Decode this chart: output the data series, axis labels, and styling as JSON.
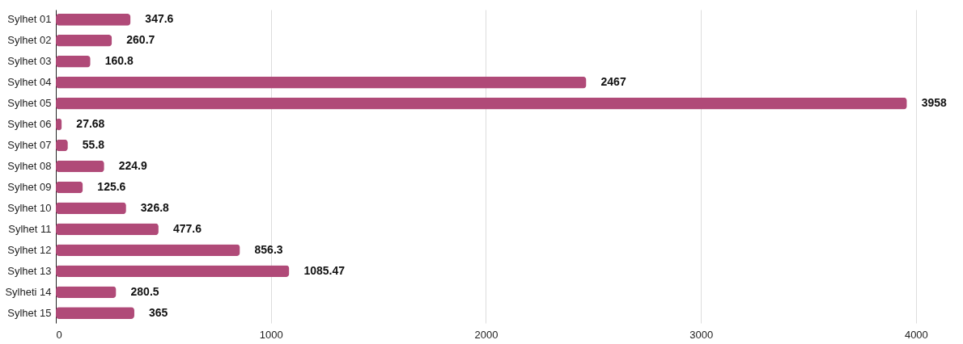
{
  "chart_data": {
    "type": "bar",
    "orientation": "horizontal",
    "categories": [
      "Sylhet 01",
      "Sylhet 02",
      "Sylhet 03",
      "Sylhet 04",
      "Sylhet 05",
      "Sylhet 06",
      "Sylhet 07",
      "Sylhet 08",
      "Sylhet 09",
      "Sylhet 10",
      "Sylhet 11",
      "Sylhet 12",
      "Sylhet 13",
      "Sylheti 14",
      "Sylhet 15"
    ],
    "values": [
      347.6,
      260.7,
      160.8,
      2467,
      3958,
      27.68,
      55.8,
      224.9,
      125.6,
      326.8,
      477.6,
      856.3,
      1085.47,
      280.5,
      365
    ],
    "color": "#b04a78",
    "xlim": [
      0,
      4200
    ],
    "xticks": [
      0,
      1000,
      2000,
      3000,
      4000
    ],
    "grid": "x",
    "data_labels": true
  }
}
